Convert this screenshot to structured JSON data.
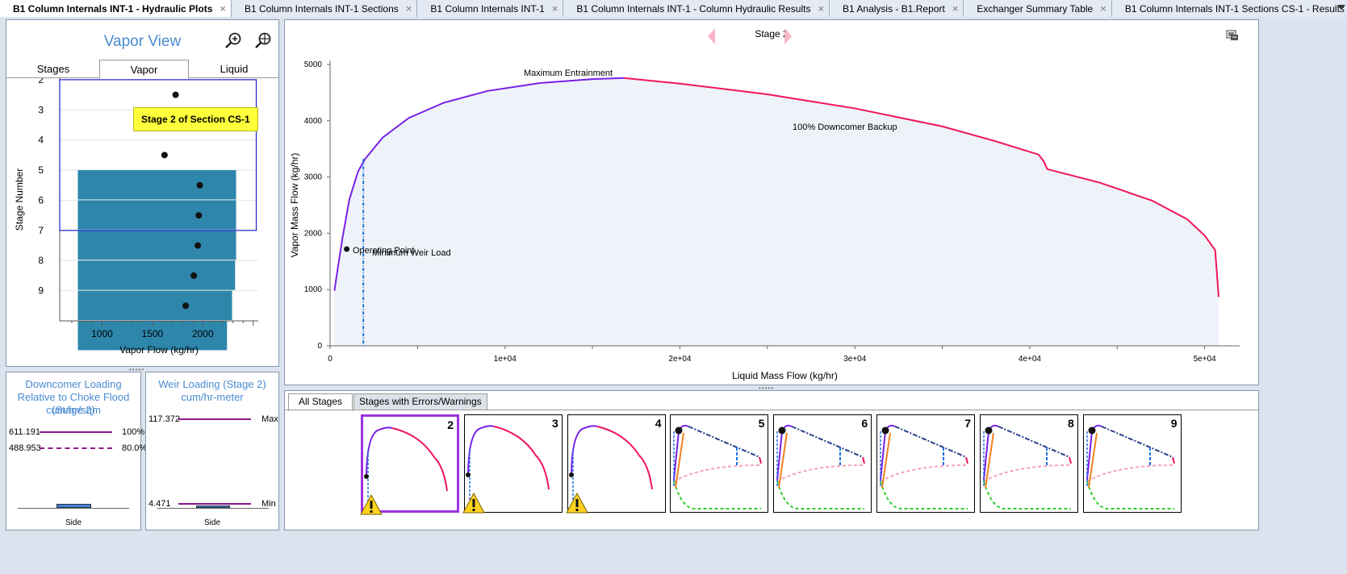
{
  "tabs": [
    {
      "label": "B1 Column Internals INT-1 - Hydraulic Plots",
      "active": true
    },
    {
      "label": "B1 Column Internals INT-1 Sections",
      "active": false
    },
    {
      "label": "B1 Column Internals INT-1",
      "active": false
    },
    {
      "label": "B1 Column Internals INT-1 - Column Hydraulic Results",
      "active": false
    },
    {
      "label": "B1 Analysis - B1.Report",
      "active": false
    },
    {
      "label": "Exchanger Summary Table",
      "active": false
    },
    {
      "label": "B1 Column Internals INT-1 Sections CS-1 - Results",
      "active": false
    }
  ],
  "tab_add": "+",
  "tab_close": "×",
  "vapor_view": {
    "title": "Vapor View",
    "subtabs": [
      "Stages",
      "Vapor",
      "Liquid"
    ],
    "tooltip": "Stage 2 of Section CS-1",
    "chart_data": {
      "type": "bar",
      "ylabel": "Stage Number",
      "xlabel": "Vapor Flow (kg/hr)",
      "xticks": [
        1000,
        1500,
        2000
      ],
      "xlim": [
        580,
        2550
      ],
      "categories": [
        "2",
        "3",
        "4",
        "5",
        "6",
        "7",
        "8",
        "9"
      ],
      "bars": [
        {
          "stage": 5,
          "value": 2330
        },
        {
          "stage": 6,
          "value": 2330
        },
        {
          "stage": 7,
          "value": 2330
        },
        {
          "stage": 8,
          "value": 2320
        },
        {
          "stage": 9,
          "value": 2290
        },
        {
          "stage": 10,
          "value": 2240
        }
      ],
      "bar_start": 760,
      "points": [
        {
          "stage": 2.5,
          "value": 1730
        },
        {
          "stage": 3.5,
          "value": 1690
        },
        {
          "stage": 4.5,
          "value": 1620
        },
        {
          "stage": 5.5,
          "value": 1970
        },
        {
          "stage": 6.5,
          "value": 1960
        },
        {
          "stage": 7.5,
          "value": 1950
        },
        {
          "stage": 8.5,
          "value": 1910
        },
        {
          "stage": 9.5,
          "value": 1830
        }
      ],
      "selection": {
        "stage_from": 2,
        "stage_to": 7,
        "value_from": 580,
        "value_to": 2530
      },
      "bar_color": "#2e86ab"
    }
  },
  "downcomer": {
    "title": "Downcomer Loading Relative to Choke Flood (Stage 2)",
    "units": "cum/hr/sqm",
    "values": [
      "611.191",
      "488.953"
    ],
    "labels": [
      "100%",
      "80.0%"
    ],
    "xlabel": "Side"
  },
  "weir": {
    "title": "Weir Loading (Stage 2)",
    "units": "cum/hr-meter",
    "values": [
      "117.372",
      "4.471"
    ],
    "labels": [
      "Max",
      "Min"
    ],
    "xlabel": "Side"
  },
  "main_plot": {
    "stage_label": "Stage 2",
    "chart_data": {
      "type": "line",
      "xlabel": "Liquid Mass Flow (kg/hr)",
      "ylabel": "Vapor Mass Flow (kg/hr)",
      "xlim": [
        0,
        52000
      ],
      "ylim": [
        0,
        5000
      ],
      "xticks": [
        0,
        10000,
        20000,
        30000,
        40000,
        50000
      ],
      "xtick_labels": [
        "0",
        "1e+04",
        "2e+04",
        "3e+04",
        "4e+04",
        "5e+04"
      ],
      "yticks": [
        0,
        1000,
        2000,
        3000,
        4000,
        5000
      ],
      "ytick_labels": [
        "0",
        "1000",
        "2000",
        "3000",
        "4000",
        "5000"
      ],
      "entrainment": [
        [
          250,
          980
        ],
        [
          400,
          1300
        ],
        [
          700,
          1900
        ],
        [
          1100,
          2600
        ],
        [
          1600,
          3100
        ],
        [
          2000,
          3320
        ],
        [
          3000,
          3700
        ],
        [
          4500,
          4050
        ],
        [
          6500,
          4320
        ],
        [
          9000,
          4530
        ],
        [
          12000,
          4670
        ],
        [
          15000,
          4740
        ],
        [
          16800,
          4760
        ]
      ],
      "downcomer": [
        [
          16800,
          4760
        ],
        [
          20000,
          4660
        ],
        [
          25000,
          4470
        ],
        [
          30000,
          4220
        ],
        [
          35000,
          3900
        ],
        [
          38000,
          3640
        ],
        [
          40500,
          3400
        ],
        [
          40800,
          3280
        ],
        [
          41000,
          3140
        ],
        [
          44000,
          2900
        ],
        [
          47000,
          2580
        ],
        [
          49000,
          2250
        ],
        [
          50000,
          1960
        ],
        [
          50600,
          1700
        ],
        [
          50800,
          870
        ]
      ],
      "min_weir_x": 1900,
      "operating_point": [
        950,
        1720
      ],
      "annotations": [
        "Maximum Entrainment",
        "100% Downcomer Backup",
        "Operating Point",
        "Minimum Weir Load"
      ],
      "entrainment_color": "#7a1fe6",
      "downcomer_color": "#f0155a"
    }
  },
  "thumbs": {
    "tabs": [
      "All Stages",
      "Stages with Errors/Warnings"
    ],
    "stages": [
      "2",
      "3",
      "4",
      "5",
      "6",
      "7",
      "8",
      "9"
    ],
    "warning_icon": "warning-icon"
  }
}
